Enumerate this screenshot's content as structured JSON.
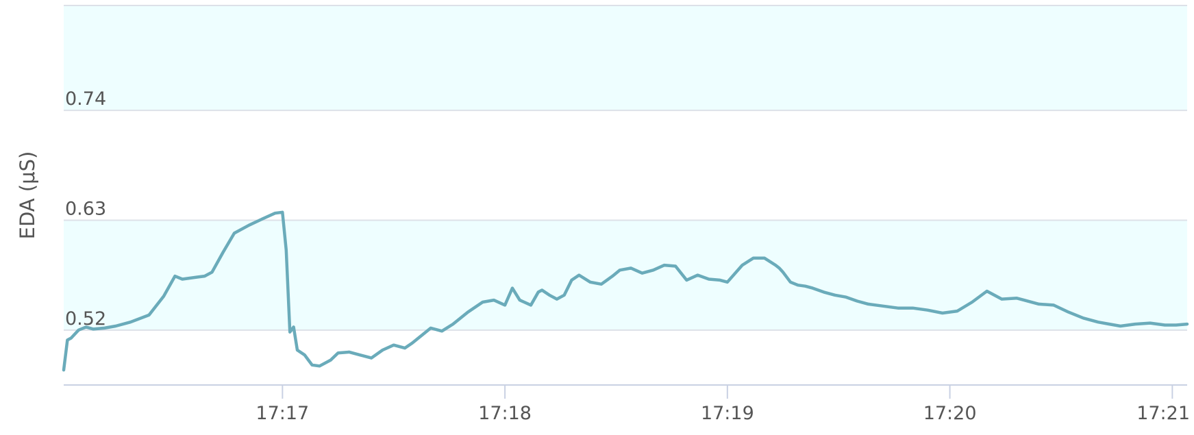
{
  "chart_data": {
    "type": "line",
    "title": "",
    "xlabel": "",
    "ylabel": "EDA (μS)",
    "ylim": [
      0.465,
      0.845
    ],
    "xlim": [
      "17:16:01",
      "17:21:04"
    ],
    "yticks": [
      0.52,
      0.63,
      0.74
    ],
    "xticks": [
      "17:17",
      "17:18",
      "17:19",
      "17:20",
      "17:21"
    ],
    "bands": [
      [
        0.52,
        0.63
      ],
      [
        0.74,
        0.85
      ]
    ],
    "grid": true,
    "legend": "none",
    "line_color": "#6aabba",
    "band_color": "#eefeff",
    "series": [
      {
        "x": [
          "17:16:01",
          "17:16:02",
          "17:16:03",
          "17:16:05",
          "17:16:07",
          "17:16:09",
          "17:16:12",
          "17:16:15",
          "17:16:19",
          "17:16:24",
          "17:16:28",
          "17:16:31",
          "17:16:33",
          "17:16:35",
          "17:16:37",
          "17:16:39",
          "17:16:41",
          "17:16:44",
          "17:16:47",
          "17:16:51",
          "17:16:55",
          "17:16:58",
          "17:17:00",
          "17:17:01",
          "17:17:02",
          "17:17:03",
          "17:17:04",
          "17:17:06",
          "17:17:07",
          "17:17:08",
          "17:17:10",
          "17:17:13",
          "17:17:15",
          "17:17:18",
          "17:17:21",
          "17:17:24",
          "17:17:27",
          "17:17:30",
          "17:17:33",
          "17:17:35",
          "17:17:36",
          "17:17:38",
          "17:17:40",
          "17:17:43",
          "17:17:46",
          "17:17:50",
          "17:17:54",
          "17:17:57",
          "17:18:00",
          "17:18:02",
          "17:18:04",
          "17:18:07",
          "17:18:09",
          "17:18:10",
          "17:18:12",
          "17:18:14",
          "17:18:16",
          "17:18:18",
          "17:18:20",
          "17:18:23",
          "17:18:26",
          "17:18:29",
          "17:18:31",
          "17:18:34",
          "17:18:37",
          "17:18:40",
          "17:18:43",
          "17:18:46",
          "17:18:49",
          "17:18:52",
          "17:18:55",
          "17:18:58",
          "17:19:00",
          "17:19:04",
          "17:19:07",
          "17:19:10",
          "17:19:13",
          "17:19:14",
          "17:19:15",
          "17:19:17",
          "17:19:19",
          "17:19:21",
          "17:19:23",
          "17:19:26",
          "17:19:29",
          "17:19:32",
          "17:19:35",
          "17:19:38",
          "17:19:42",
          "17:19:46",
          "17:19:50",
          "17:19:54",
          "17:19:58",
          "17:20:02",
          "17:20:06",
          "17:20:10",
          "17:20:14",
          "17:20:18",
          "17:20:20",
          "17:20:24",
          "17:20:28",
          "17:20:32",
          "17:20:36",
          "17:20:40",
          "17:20:43",
          "17:20:46",
          "17:20:50",
          "17:20:54",
          "17:20:58",
          "17:21:01",
          "17:21:04"
        ],
        "y": [
          0.48,
          0.51,
          0.512,
          0.52,
          0.523,
          0.521,
          0.522,
          0.524,
          0.528,
          0.535,
          0.554,
          0.574,
          0.571,
          0.572,
          0.573,
          0.574,
          0.578,
          0.598,
          0.617,
          0.625,
          0.632,
          0.637,
          0.638,
          0.6,
          0.518,
          0.523,
          0.5,
          0.495,
          0.49,
          0.485,
          0.484,
          0.49,
          0.497,
          0.498,
          0.495,
          0.492,
          0.5,
          0.505,
          0.502,
          0.507,
          0.51,
          0.516,
          0.522,
          0.519,
          0.526,
          0.538,
          0.548,
          0.55,
          0.545,
          0.562,
          0.55,
          0.545,
          0.558,
          0.56,
          0.555,
          0.551,
          0.555,
          0.57,
          0.575,
          0.568,
          0.566,
          0.574,
          0.58,
          0.582,
          0.577,
          0.58,
          0.585,
          0.584,
          0.57,
          0.575,
          0.571,
          0.57,
          0.568,
          0.585,
          0.592,
          0.592,
          0.585,
          0.582,
          0.578,
          0.568,
          0.565,
          0.564,
          0.562,
          0.558,
          0.555,
          0.553,
          0.549,
          0.546,
          0.544,
          0.542,
          0.542,
          0.54,
          0.537,
          0.539,
          0.548,
          0.559,
          0.551,
          0.552,
          0.55,
          0.546,
          0.545,
          0.538,
          0.532,
          0.528,
          0.526,
          0.524,
          0.526,
          0.527,
          0.525,
          0.525,
          0.526
        ]
      }
    ]
  }
}
